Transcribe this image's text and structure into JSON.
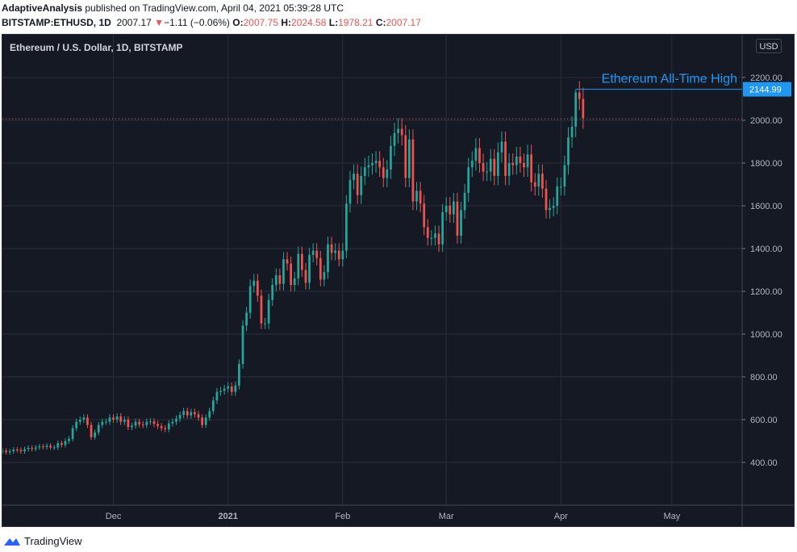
{
  "header": {
    "publisher": "AdaptiveAnalysis",
    "published_text": " published on TradingView.com, April 04, 2021 05:39:28 UTC",
    "symbol": "BITSTAMP:ETHUSD, 1D",
    "last": "2007.17",
    "arrow": "▼",
    "change": "−1.11 (−0.06%)",
    "o_label": "O:",
    "o_value": "2007.75",
    "h_label": "H:",
    "h_value": "2024.58",
    "l_label": "L:",
    "l_value": "1978.21",
    "c_label": "C:",
    "c_value": "2007.17"
  },
  "chart_title": "Ethereum / U.S. Dollar, 1D, BITSTAMP",
  "currency": "USD",
  "annotation": "Ethereum All-Time High",
  "footer": {
    "brand": "TradingView"
  },
  "colors": {
    "up": "#26a69a",
    "down": "#ef5350",
    "bg": "#151924",
    "grid": "#2a2e39",
    "annotation": "#2196f3",
    "price_line": "#ef5350"
  },
  "chart_data": {
    "type": "candlestick",
    "y_ticks": [
      400,
      600,
      800,
      1000,
      1200,
      1400,
      1600,
      1800,
      2000,
      2200
    ],
    "y_tick_labels": [
      "400.00",
      "600.00",
      "800.00",
      "1000.00",
      "1200.00",
      "1400.00",
      "1600.00",
      "1800.00",
      "2000.00",
      "2200.00"
    ],
    "ylim": [
      200,
      2400
    ],
    "x_ticks": [
      {
        "date": "2020-12-01",
        "label": "Dec",
        "bold": false
      },
      {
        "date": "2021-01-01",
        "label": "2021",
        "bold": true
      },
      {
        "date": "2021-02-01",
        "label": "Feb",
        "bold": false
      },
      {
        "date": "2021-03-01",
        "label": "Mar",
        "bold": false
      },
      {
        "date": "2021-04-01",
        "label": "Apr",
        "bold": false
      },
      {
        "date": "2021-05-01",
        "label": "May",
        "bold": false
      }
    ],
    "xlim": [
      "2020-11-01",
      "2021-05-20"
    ],
    "first_date": "2020-11-01",
    "ath_price": 2144.99,
    "ath_label": "2144.99",
    "last_price": 2007.17,
    "closes": [
      455,
      448,
      452,
      460,
      458,
      452,
      462,
      468,
      463,
      470,
      475,
      472,
      478,
      470,
      470,
      490,
      482,
      500,
      510,
      560,
      590,
      600,
      610,
      575,
      518,
      540,
      575,
      590,
      590,
      610,
      600,
      615,
      590,
      600,
      565,
      572,
      590,
      578,
      575,
      590,
      592,
      580,
      570,
      560,
      555,
      582,
      590,
      605,
      622,
      640,
      620,
      635,
      625,
      610,
      575,
      610,
      640,
      690,
      730,
      735,
      745,
      755,
      730,
      760,
      860,
      1040,
      1100,
      1225,
      1250,
      1180,
      1050,
      1050,
      1160,
      1230,
      1275,
      1235,
      1350,
      1330,
      1230,
      1260,
      1375,
      1300,
      1240,
      1370,
      1390,
      1355,
      1255,
      1290,
      1420,
      1380,
      1390,
      1350,
      1390,
      1610,
      1720,
      1750,
      1650,
      1740,
      1780,
      1790,
      1800,
      1810,
      1780,
      1730,
      1770,
      1880,
      1940,
      1960,
      1930,
      1730,
      1910,
      1620,
      1670,
      1610,
      1500,
      1450,
      1450,
      1470,
      1420,
      1570,
      1600,
      1560,
      1620,
      1460,
      1580,
      1660,
      1780,
      1810,
      1870,
      1800,
      1760,
      1760,
      1820,
      1740,
      1850,
      1900,
      1740,
      1800,
      1790,
      1830,
      1800,
      1780,
      1840,
      1710,
      1690,
      1750,
      1680,
      1580,
      1590,
      1600,
      1690,
      1690,
      1790,
      1920,
      1970,
      2130,
      2100,
      2010
    ]
  }
}
